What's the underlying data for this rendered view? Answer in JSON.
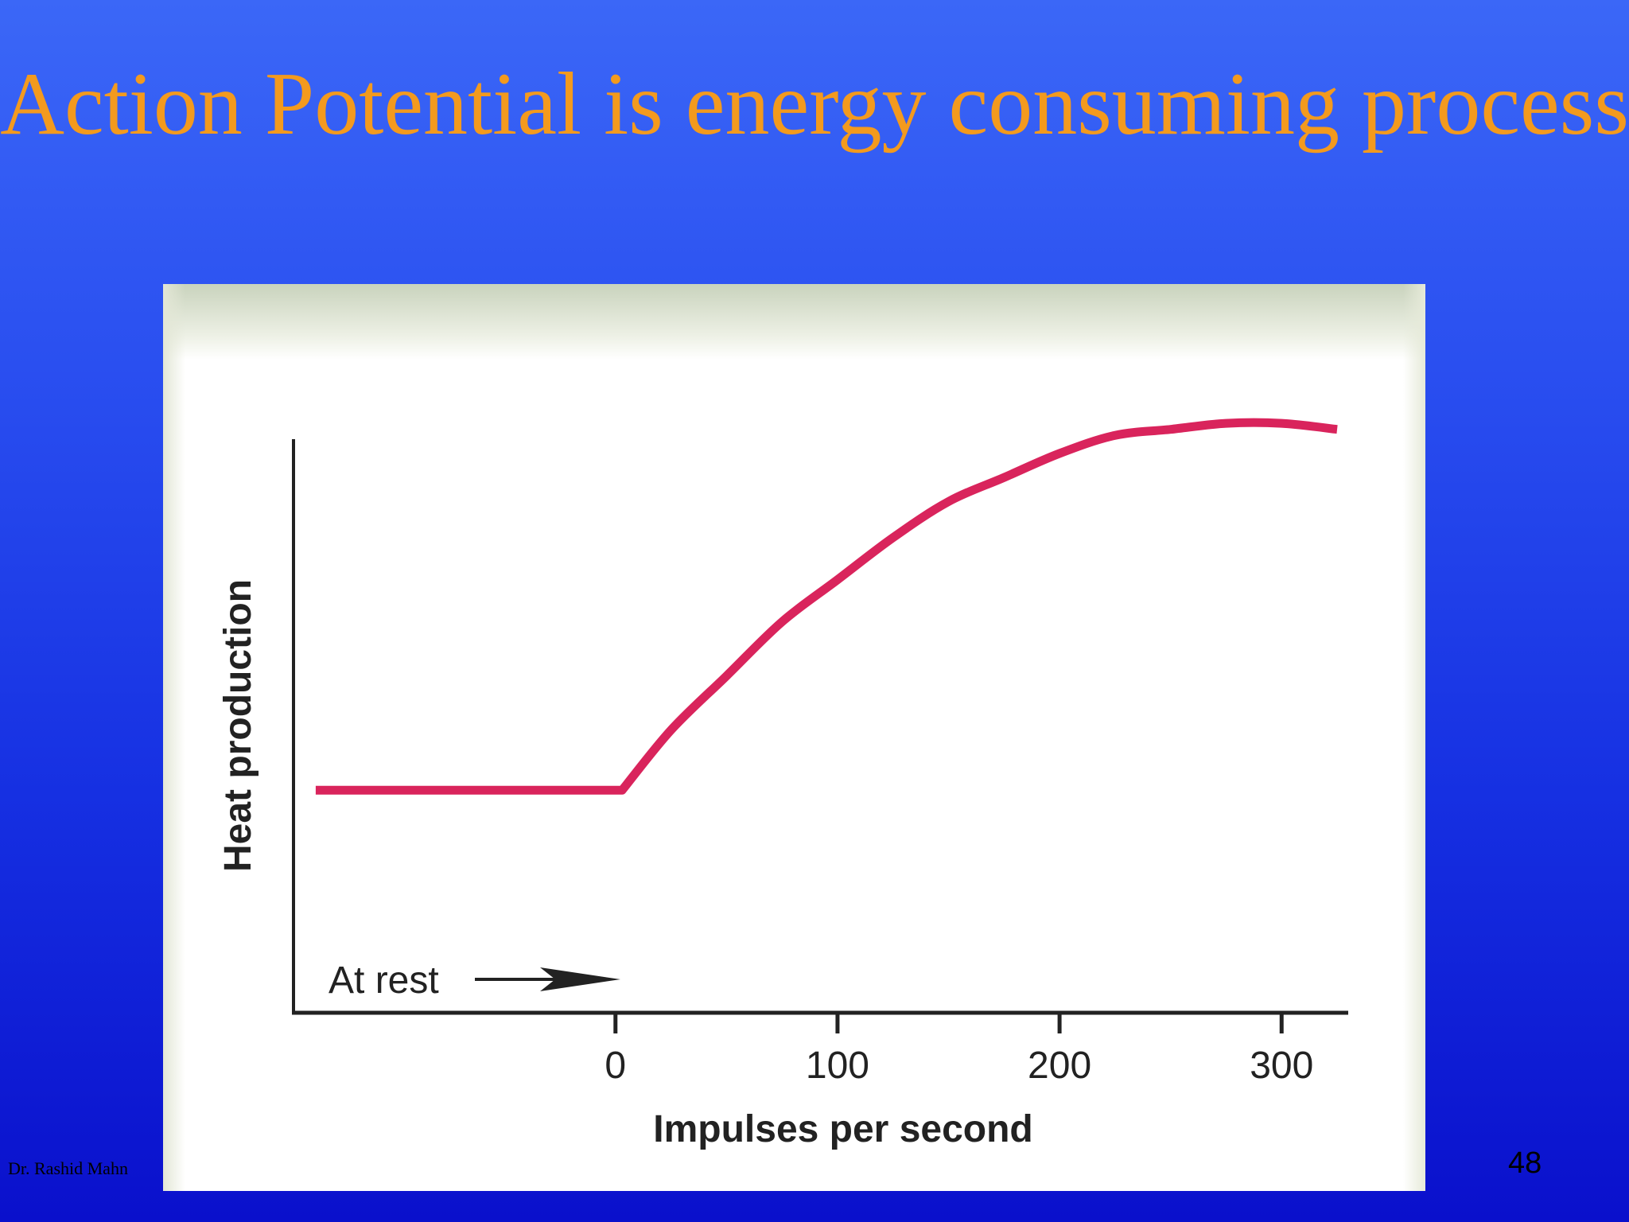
{
  "slide": {
    "title": "Action Potential is energy consuming process",
    "footer_author": "Dr. Rashid Mahn",
    "slide_number": "48"
  },
  "colors": {
    "background_top": "#3b67f7",
    "background_bottom": "#0a10cc",
    "title": "#f39a1e",
    "curve": "#d9245c",
    "axis": "#222222"
  },
  "chart_data": {
    "type": "line",
    "title": "",
    "xlabel": "Impulses per second",
    "ylabel": "Heat production",
    "xlim": [
      -145,
      330
    ],
    "ylim": [
      0,
      1
    ],
    "x_ticks": [
      0,
      100,
      200,
      300
    ],
    "y_ticks": [],
    "grid": false,
    "annotation": "At rest",
    "series": [
      {
        "x": [
          -135,
          -100,
          -50,
          0,
          3,
          25,
          50,
          75,
          100,
          125,
          150,
          175,
          200,
          225,
          250,
          275,
          300,
          325
        ],
        "y": [
          0.37,
          0.37,
          0.37,
          0.37,
          0.37,
          0.47,
          0.56,
          0.65,
          0.72,
          0.79,
          0.85,
          0.89,
          0.93,
          0.96,
          0.97,
          0.98,
          0.98,
          0.97
        ]
      }
    ]
  }
}
